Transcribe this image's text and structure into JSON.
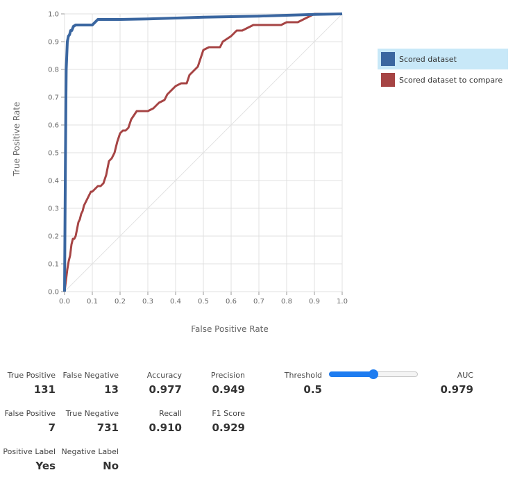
{
  "chart_data": {
    "type": "line",
    "xlabel": "False Positive Rate",
    "ylabel": "True Positive Rate",
    "xlim": [
      0,
      1
    ],
    "ylim": [
      0,
      1
    ],
    "xticks": [
      "0.0",
      "0.1",
      "0.2",
      "0.3",
      "0.4",
      "0.5",
      "0.6",
      "0.7",
      "0.8",
      "0.9",
      "1.0"
    ],
    "yticks": [
      "0.0",
      "0.1",
      "0.2",
      "0.3",
      "0.4",
      "0.5",
      "0.6",
      "0.7",
      "0.8",
      "0.9",
      "1.0"
    ],
    "grid": true,
    "legend_position": "right",
    "diagonal_reference": true,
    "series": [
      {
        "name": "Scored dataset",
        "color": "#3a66a0",
        "x": [
          0,
          0.003,
          0.005,
          0.006,
          0.008,
          0.01,
          0.012,
          0.014,
          0.018,
          0.022,
          0.026,
          0.032,
          0.04,
          0.06,
          0.08,
          0.1,
          0.11,
          0.12,
          0.2,
          0.3,
          0.4,
          0.5,
          0.6,
          0.7,
          0.8,
          0.9,
          1.0
        ],
        "y": [
          0,
          0.45,
          0.7,
          0.8,
          0.85,
          0.9,
          0.91,
          0.92,
          0.925,
          0.94,
          0.94,
          0.955,
          0.96,
          0.96,
          0.96,
          0.96,
          0.97,
          0.98,
          0.98,
          0.982,
          0.985,
          0.988,
          0.99,
          0.992,
          0.995,
          0.998,
          1.0
        ]
      },
      {
        "name": "Scored dataset to compare",
        "color": "#a64444",
        "x": [
          0,
          0.005,
          0.01,
          0.015,
          0.02,
          0.025,
          0.03,
          0.035,
          0.04,
          0.05,
          0.055,
          0.06,
          0.065,
          0.07,
          0.075,
          0.08,
          0.085,
          0.09,
          0.095,
          0.1,
          0.11,
          0.12,
          0.13,
          0.14,
          0.15,
          0.16,
          0.17,
          0.18,
          0.19,
          0.2,
          0.21,
          0.22,
          0.23,
          0.24,
          0.26,
          0.28,
          0.3,
          0.32,
          0.34,
          0.36,
          0.37,
          0.38,
          0.4,
          0.42,
          0.43,
          0.44,
          0.45,
          0.46,
          0.47,
          0.48,
          0.49,
          0.5,
          0.52,
          0.54,
          0.56,
          0.57,
          0.6,
          0.62,
          0.64,
          0.66,
          0.68,
          0.7,
          0.78,
          0.8,
          0.82,
          0.84,
          0.86,
          0.88,
          0.9,
          0.95,
          1.0
        ],
        "y": [
          0,
          0.04,
          0.08,
          0.11,
          0.13,
          0.17,
          0.19,
          0.19,
          0.2,
          0.25,
          0.26,
          0.28,
          0.29,
          0.31,
          0.32,
          0.33,
          0.34,
          0.35,
          0.36,
          0.36,
          0.37,
          0.38,
          0.38,
          0.39,
          0.42,
          0.47,
          0.48,
          0.5,
          0.54,
          0.57,
          0.58,
          0.58,
          0.59,
          0.62,
          0.65,
          0.65,
          0.65,
          0.66,
          0.68,
          0.69,
          0.71,
          0.72,
          0.74,
          0.75,
          0.75,
          0.75,
          0.78,
          0.79,
          0.8,
          0.81,
          0.84,
          0.87,
          0.88,
          0.88,
          0.88,
          0.9,
          0.92,
          0.94,
          0.94,
          0.95,
          0.96,
          0.96,
          0.96,
          0.97,
          0.97,
          0.97,
          0.98,
          0.99,
          1.0,
          1.0,
          1.0
        ]
      }
    ]
  },
  "legend": {
    "items": [
      {
        "label": "Scored dataset",
        "color": "#3a66a0",
        "selected": true
      },
      {
        "label": "Scored dataset to compare",
        "color": "#a64444",
        "selected": false
      }
    ]
  },
  "metrics": {
    "true_positive": {
      "label": "True Positive",
      "value": "131"
    },
    "false_negative": {
      "label": "False Negative",
      "value": "13"
    },
    "accuracy": {
      "label": "Accuracy",
      "value": "0.977"
    },
    "precision": {
      "label": "Precision",
      "value": "0.949"
    },
    "threshold": {
      "label": "Threshold",
      "value": "0.5",
      "slider_fraction": 0.5
    },
    "auc": {
      "label": "AUC",
      "value": "0.979"
    },
    "false_positive": {
      "label": "False Positive",
      "value": "7"
    },
    "true_negative": {
      "label": "True Negative",
      "value": "731"
    },
    "recall": {
      "label": "Recall",
      "value": "0.910"
    },
    "f1_score": {
      "label": "F1 Score",
      "value": "0.929"
    },
    "positive_label": {
      "label": "Positive Label",
      "value": "Yes"
    },
    "negative_label": {
      "label": "Negative Label",
      "value": "No"
    }
  }
}
